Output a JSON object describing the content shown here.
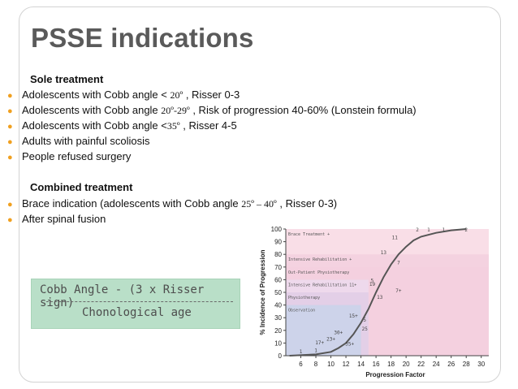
{
  "slide": {
    "title": "PSSE indications",
    "sole_heading": "Sole treatment",
    "sole_items": [
      {
        "pre": "Adolescents with Cobb angle < ",
        "mid": "20º",
        "post": " , Risser 0-3"
      },
      {
        "pre": "Adolescents with Cobb angle ",
        "mid": "20º-29º",
        "post": " , Risk of progression 40-60% (Lonstein formula)"
      },
      {
        "pre": "Adolescents with Cobb angle <",
        "mid": "35º",
        "post": " , Risser 4-5"
      },
      {
        "pre": "Adults with painful scoliosis",
        "mid": "",
        "post": ""
      },
      {
        "pre": "People refused surgery",
        "mid": "",
        "post": ""
      }
    ],
    "combined_heading": "Combined treatment",
    "combined_items": [
      {
        "pre": "Brace indication (adolescents with Cobb angle ",
        "mid": "25º – 40º",
        "post": " , Risser 0-3)"
      },
      {
        "pre": "After spinal fusion",
        "mid": "",
        "post": ""
      }
    ],
    "formula_line1": "Cobb Angle - (3 x Risser sign)",
    "formula_line2": "Chonological age",
    "bullet_color": "#f0a020",
    "title_color": "#5a5a5a"
  },
  "chart_data": {
    "type": "line",
    "xlabel": "Progression Factor",
    "ylabel": "% Incidence of Progression",
    "xlim": [
      4,
      31
    ],
    "ylim": [
      0,
      100
    ],
    "x_ticks": [
      "6",
      "8",
      "10",
      "12",
      "14",
      "16",
      "18",
      "20",
      "22",
      "24",
      "26",
      "28",
      "30"
    ],
    "y_ticks": [
      "0",
      "10",
      "20",
      "30",
      "40",
      "50",
      "60",
      "70",
      "80",
      "90",
      "100"
    ],
    "zones": [
      {
        "label": "Brace Treatment +",
        "x_to": 31,
        "y_to": 100,
        "color": "#f8d8e3"
      },
      {
        "label": "Intensive Rehabilitation +",
        "x_to": 31,
        "y_to": 80,
        "color": "#f3d0de"
      },
      {
        "label": "Out-Patient Physiotherapy",
        "x_to": 31,
        "y_to": 70,
        "color": "#f3d0de"
      },
      {
        "label": "Intensive Rehabilitation 11+",
        "x_to": 15,
        "y_to": 60,
        "color": "#ecdbef"
      },
      {
        "label": "Physiotherapy",
        "x_to": 15,
        "y_to": 50,
        "color": "#e0cde6"
      },
      {
        "label": "Observation",
        "x_to": 14,
        "y_to": 40,
        "color": "#c9d3ea"
      }
    ],
    "series": [
      {
        "values": [
          [
            4.5,
            0
          ],
          [
            8,
            1
          ],
          [
            10,
            3
          ],
          [
            11,
            6
          ],
          [
            12,
            10
          ],
          [
            13,
            17
          ],
          [
            14,
            26
          ],
          [
            15,
            37
          ],
          [
            16,
            50
          ],
          [
            17,
            62
          ],
          [
            18,
            72
          ],
          [
            19,
            80
          ],
          [
            20,
            86
          ],
          [
            21,
            91
          ],
          [
            22,
            94
          ],
          [
            24,
            97
          ],
          [
            26,
            99
          ],
          [
            28,
            100
          ]
        ]
      }
    ],
    "points": [
      {
        "x": 6,
        "y": 2,
        "label": "1"
      },
      {
        "x": 8,
        "y": 3,
        "label": "1"
      },
      {
        "x": 8.5,
        "y": 9,
        "label": "17+"
      },
      {
        "x": 10,
        "y": 12,
        "label": "23+"
      },
      {
        "x": 11,
        "y": 17,
        "label": "30+"
      },
      {
        "x": 12.5,
        "y": 8,
        "label": "35+"
      },
      {
        "x": 13,
        "y": 30,
        "label": "15+"
      },
      {
        "x": 14.5,
        "y": 20,
        "label": "25"
      },
      {
        "x": 14.5,
        "y": 27,
        "label": "5"
      },
      {
        "x": 15.5,
        "y": 55,
        "label": "19"
      },
      {
        "x": 15.5,
        "y": 58,
        "label": "5"
      },
      {
        "x": 16.5,
        "y": 45,
        "label": "13"
      },
      {
        "x": 17,
        "y": 80,
        "label": "13"
      },
      {
        "x": 18.5,
        "y": 92,
        "label": "11"
      },
      {
        "x": 19,
        "y": 72,
        "label": "7"
      },
      {
        "x": 19,
        "y": 50,
        "label": "7+"
      },
      {
        "x": 21.5,
        "y": 98,
        "label": "2"
      },
      {
        "x": 23,
        "y": 98,
        "label": "1"
      },
      {
        "x": 25,
        "y": 98,
        "label": "1"
      },
      {
        "x": 28,
        "y": 98,
        "label": "2"
      }
    ]
  }
}
